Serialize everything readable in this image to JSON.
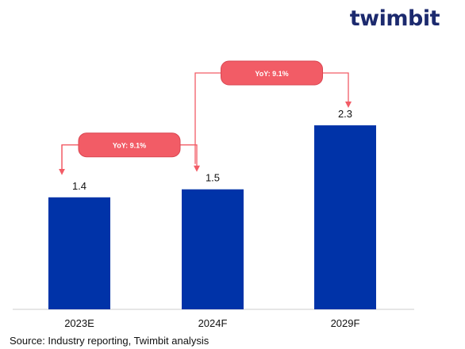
{
  "brand": {
    "logo_text": "twimbit",
    "logo_color": "#1c2a6e",
    "accent_color": "#e8434f"
  },
  "source": "Source: Industry reporting, Twimbit analysis",
  "chart_data": {
    "type": "bar",
    "categories": [
      "2023E",
      "2024F",
      "2029F"
    ],
    "values": [
      1.4,
      1.5,
      2.3
    ],
    "value_labels": [
      "1.4",
      "1.5",
      "2.3"
    ],
    "ylim": [
      0,
      2.3
    ],
    "bar_color": "#0033a8",
    "annotation_color": "#f25c66",
    "grid": false,
    "annotations": [
      {
        "from": 0,
        "to": 1,
        "label": "YoY: 9.1%"
      },
      {
        "from": 1,
        "to": 2,
        "label": "YoY: 9.1%"
      }
    ]
  }
}
